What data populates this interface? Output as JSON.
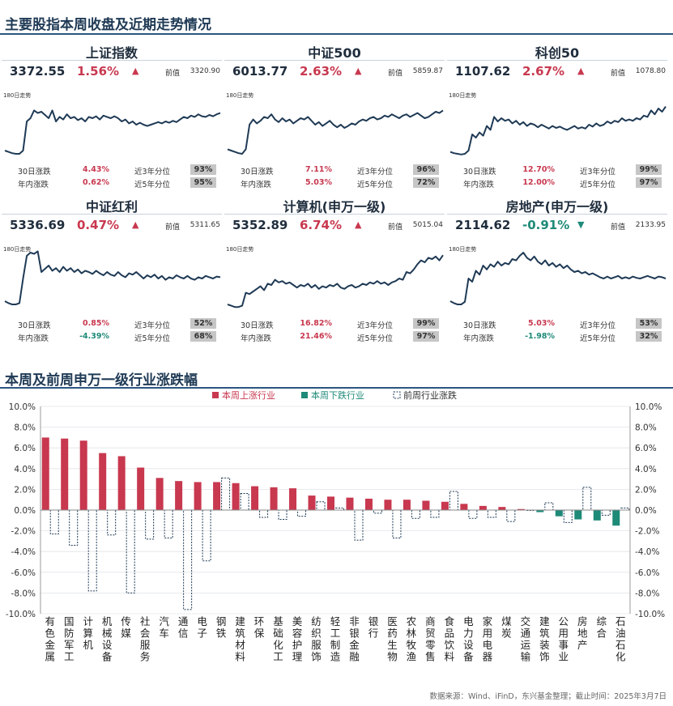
{
  "section1_title": "主要股指本周收盘及近期走势情况",
  "section2_title": "本周及前周申万一级行业涨跌幅",
  "trend_label": "180日走势",
  "prev_label": "前值",
  "stat_labels": {
    "d30": "30日涨跌",
    "ytd": "年内涨跌",
    "p3": "近3年分位",
    "p5": "近5年分位"
  },
  "colors": {
    "up": "#c8384f",
    "down": "#1e8a78",
    "line": "#1f3a55",
    "dash": "#1f3a55"
  },
  "panels": [
    {
      "name": "上证指数",
      "price": "3372.55",
      "pct": "1.56%",
      "dir": "up",
      "arrow": "▲",
      "prev": "3320.90",
      "d30": "4.43%",
      "d30_dir": "up",
      "ytd": "0.62%",
      "ytd_dir": "up",
      "p3": "93%",
      "p5": "95%",
      "trend": [
        0.1,
        0.08,
        0.06,
        0.05,
        0.05,
        0.1,
        0.55,
        0.6,
        0.72,
        0.68,
        0.7,
        0.65,
        0.6,
        0.72,
        0.55,
        0.62,
        0.58,
        0.66,
        0.6,
        0.62,
        0.57,
        0.6,
        0.55,
        0.62,
        0.6,
        0.63,
        0.58,
        0.64,
        0.62,
        0.6,
        0.63,
        0.6,
        0.55,
        0.58,
        0.52,
        0.55,
        0.5,
        0.53,
        0.5,
        0.48,
        0.5,
        0.52,
        0.54,
        0.52,
        0.55,
        0.53,
        0.56,
        0.54,
        0.58,
        0.62,
        0.6,
        0.64,
        0.62,
        0.66,
        0.63,
        0.62,
        0.65,
        0.63,
        0.66,
        0.68
      ]
    },
    {
      "name": "中证500",
      "price": "6013.77",
      "pct": "2.63%",
      "dir": "up",
      "arrow": "▲",
      "prev": "5859.87",
      "d30": "7.11%",
      "d30_dir": "up",
      "ytd": "5.03%",
      "ytd_dir": "up",
      "p3": "96%",
      "p5": "72%",
      "trend": [
        0.12,
        0.1,
        0.08,
        0.06,
        0.05,
        0.12,
        0.5,
        0.58,
        0.52,
        0.56,
        0.62,
        0.6,
        0.66,
        0.58,
        0.54,
        0.6,
        0.55,
        0.58,
        0.52,
        0.56,
        0.6,
        0.58,
        0.62,
        0.56,
        0.5,
        0.54,
        0.48,
        0.52,
        0.56,
        0.5,
        0.46,
        0.5,
        0.45,
        0.48,
        0.52,
        0.5,
        0.55,
        0.58,
        0.56,
        0.6,
        0.62,
        0.58,
        0.6,
        0.64,
        0.62,
        0.66,
        0.63,
        0.6,
        0.64,
        0.66,
        0.62,
        0.65,
        0.68,
        0.64,
        0.6,
        0.62,
        0.66,
        0.7,
        0.68,
        0.72
      ]
    },
    {
      "name": "科创50",
      "price": "1107.62",
      "pct": "2.67%",
      "dir": "up",
      "arrow": "▲",
      "prev": "1078.80",
      "d30": "12.70%",
      "d30_dir": "up",
      "ytd": "12.00%",
      "ytd_dir": "up",
      "p3": "99%",
      "p5": "97%",
      "trend": [
        0.08,
        0.06,
        0.05,
        0.04,
        0.05,
        0.1,
        0.35,
        0.3,
        0.38,
        0.33,
        0.48,
        0.42,
        0.62,
        0.55,
        0.6,
        0.56,
        0.58,
        0.52,
        0.56,
        0.5,
        0.54,
        0.48,
        0.52,
        0.5,
        0.46,
        0.5,
        0.47,
        0.44,
        0.48,
        0.45,
        0.47,
        0.44,
        0.42,
        0.45,
        0.48,
        0.44,
        0.46,
        0.44,
        0.5,
        0.47,
        0.52,
        0.48,
        0.5,
        0.55,
        0.52,
        0.56,
        0.54,
        0.6,
        0.56,
        0.58,
        0.56,
        0.6,
        0.58,
        0.64,
        0.62,
        0.72,
        0.66,
        0.75,
        0.7,
        0.78
      ]
    },
    {
      "name": "中证红利",
      "price": "5336.69",
      "pct": "0.47%",
      "dir": "up",
      "arrow": "▲",
      "prev": "5311.65",
      "d30": "0.85%",
      "d30_dir": "up",
      "ytd": "-4.39%",
      "ytd_dir": "down",
      "p3": "52%",
      "p5": "68%",
      "trend": [
        0.15,
        0.12,
        0.1,
        0.1,
        0.12,
        0.5,
        0.85,
        0.9,
        0.88,
        0.92,
        0.6,
        0.65,
        0.7,
        0.62,
        0.66,
        0.6,
        0.68,
        0.62,
        0.66,
        0.6,
        0.64,
        0.58,
        0.62,
        0.6,
        0.57,
        0.62,
        0.58,
        0.55,
        0.6,
        0.56,
        0.54,
        0.6,
        0.55,
        0.52,
        0.58,
        0.56,
        0.6,
        0.55,
        0.5,
        0.55,
        0.52,
        0.56,
        0.5,
        0.54,
        0.48,
        0.52,
        0.5,
        0.55,
        0.52,
        0.5,
        0.54,
        0.5,
        0.48,
        0.52,
        0.5,
        0.54,
        0.52,
        0.5,
        0.53,
        0.52
      ]
    },
    {
      "name": "计算机(申万一级)",
      "price": "5352.89",
      "pct": "6.74%",
      "dir": "up",
      "arrow": "▲",
      "prev": "5015.04",
      "d30": "16.82%",
      "d30_dir": "up",
      "ytd": "21.46%",
      "ytd_dir": "up",
      "p3": "99%",
      "p5": "97%",
      "trend": [
        0.1,
        0.08,
        0.06,
        0.06,
        0.08,
        0.28,
        0.26,
        0.3,
        0.34,
        0.38,
        0.32,
        0.42,
        0.4,
        0.48,
        0.44,
        0.46,
        0.42,
        0.44,
        0.4,
        0.36,
        0.4,
        0.38,
        0.42,
        0.36,
        0.4,
        0.34,
        0.38,
        0.36,
        0.4,
        0.38,
        0.42,
        0.36,
        0.34,
        0.38,
        0.4,
        0.36,
        0.38,
        0.42,
        0.4,
        0.44,
        0.42,
        0.46,
        0.42,
        0.44,
        0.4,
        0.44,
        0.46,
        0.5,
        0.48,
        0.6,
        0.58,
        0.64,
        0.72,
        0.78,
        0.75,
        0.82,
        0.8,
        0.84,
        0.78,
        0.86
      ]
    },
    {
      "name": "房地产(申万一级)",
      "price": "2114.62",
      "pct": "-0.91%",
      "dir": "down",
      "arrow": "▼",
      "prev": "2133.95",
      "d30": "5.03%",
      "d30_dir": "up",
      "ytd": "-1.98%",
      "ytd_dir": "down",
      "p3": "53%",
      "p5": "32%",
      "trend": [
        0.15,
        0.12,
        0.1,
        0.1,
        0.14,
        0.5,
        0.45,
        0.62,
        0.56,
        0.7,
        0.64,
        0.72,
        0.68,
        0.76,
        0.7,
        0.74,
        0.72,
        0.8,
        0.78,
        0.85,
        0.9,
        0.82,
        0.78,
        0.84,
        0.76,
        0.72,
        0.78,
        0.7,
        0.74,
        0.68,
        0.72,
        0.66,
        0.7,
        0.64,
        0.6,
        0.62,
        0.58,
        0.6,
        0.56,
        0.58,
        0.55,
        0.52,
        0.5,
        0.53,
        0.5,
        0.52,
        0.54,
        0.5,
        0.52,
        0.5,
        0.53,
        0.51,
        0.5,
        0.52,
        0.54,
        0.52,
        0.5,
        0.53,
        0.52,
        0.5
      ]
    }
  ],
  "chart_data": {
    "type": "bar",
    "legend": [
      "本周上涨行业",
      "本周下跌行业",
      "前周行业涨跌"
    ],
    "yticks": [
      "10.0%",
      "8.0%",
      "6.0%",
      "4.0%",
      "2.0%",
      "0.0%",
      "-2.0%",
      "-4.0%",
      "-6.0%",
      "-8.0%",
      "-10.0%"
    ],
    "ylim": [
      -10,
      10
    ],
    "categories": [
      "有色金属",
      "国防军工",
      "计算机",
      "机械设备",
      "传媒",
      "社会服务",
      "汽车",
      "通信",
      "电子",
      "钢铁",
      "建筑材料",
      "环保",
      "基础化工",
      "美容护理",
      "纺织服饰",
      "轻工制造",
      "非银金融",
      "银行",
      "医药生物",
      "农林牧渔",
      "商贸零售",
      "食品饮料",
      "电力设备",
      "家用电器",
      "煤炭",
      "交通运输",
      "建筑装饰",
      "公用事业",
      "房地产",
      "综合",
      "石油石化"
    ],
    "this_week": [
      7.0,
      6.9,
      6.7,
      5.5,
      5.2,
      4.1,
      3.1,
      2.8,
      2.7,
      2.7,
      2.6,
      2.3,
      2.2,
      2.1,
      1.4,
      1.3,
      1.2,
      1.1,
      1.0,
      1.0,
      0.9,
      0.8,
      0.6,
      0.4,
      0.3,
      0.1,
      -0.2,
      -0.6,
      -0.9,
      -1.0,
      -1.5
    ],
    "prev_week": [
      -2.3,
      -3.4,
      -7.8,
      -2.4,
      -8.0,
      -2.8,
      -2.7,
      -9.6,
      -4.9,
      3.1,
      1.6,
      -0.7,
      -0.9,
      -0.6,
      0.8,
      0.2,
      -2.9,
      -0.3,
      -2.7,
      -0.8,
      -0.7,
      1.8,
      -0.8,
      -0.7,
      -1.1,
      0.0,
      0.7,
      -1.2,
      2.2,
      -0.5,
      0.2
    ]
  },
  "source": "数据来源：Wind、iFinD，东兴基金整理；截止时间：2025年3月7日"
}
